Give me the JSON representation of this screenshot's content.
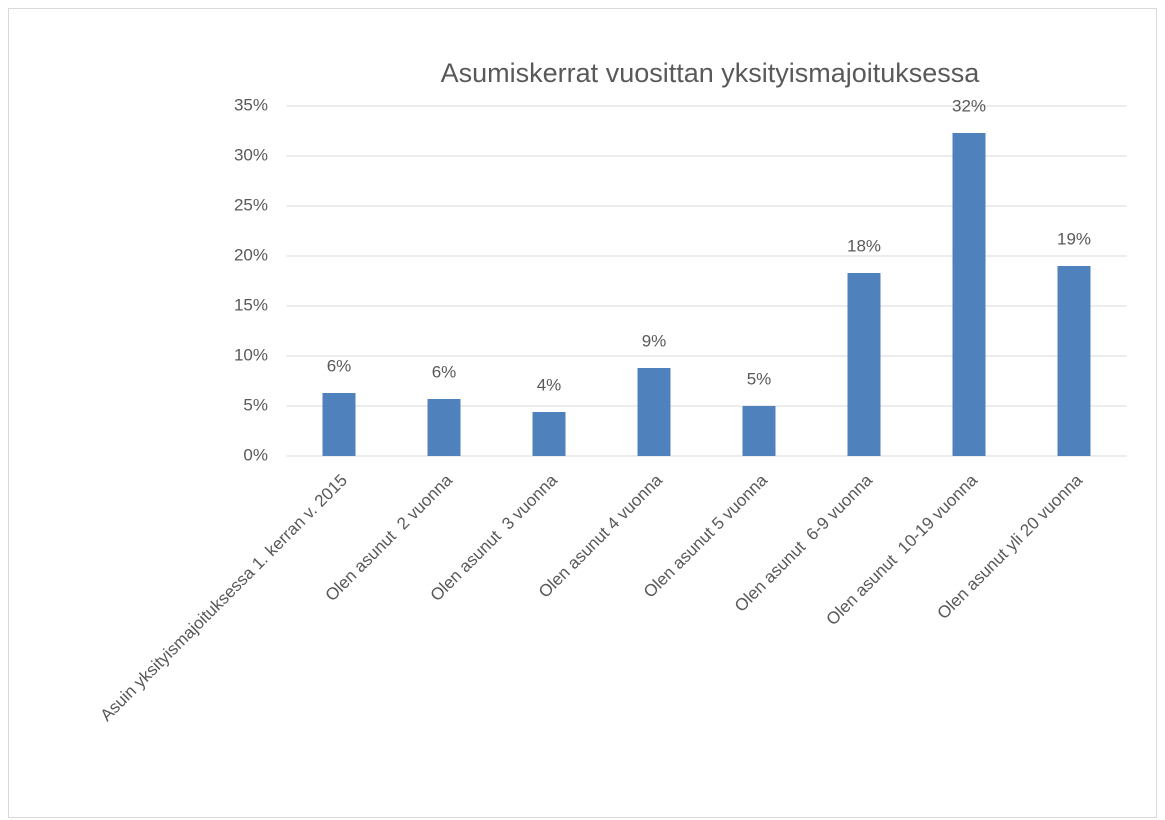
{
  "chart_data": {
    "type": "bar",
    "title": "Asumiskerrat vuosittan yksityismajoituksessa",
    "categories": [
      "Asuin yksityismajoituksessa 1. kerran v. 2015",
      "Olen asunut  2 vuonna",
      "Olen asunut  3 vuonna",
      "Olen asunut 4 vuonna",
      "Olen asunut 5 vuonna",
      "Olen asunut  6-9 vuonna",
      "Olen asunut  10-19 vuonna",
      "Olen asunut yli 20 vuonna"
    ],
    "values": [
      6.3,
      5.7,
      4.4,
      8.8,
      5.0,
      18.3,
      32.3,
      19.0
    ],
    "value_labels": [
      "6%",
      "6%",
      "4%",
      "9%",
      "5%",
      "18%",
      "32%",
      "19%"
    ],
    "color": "#4f81bd",
    "ylim": [
      0,
      35
    ],
    "yticks": [
      {
        "value": 0,
        "label": "0%"
      },
      {
        "value": 5,
        "label": "5%"
      },
      {
        "value": 10,
        "label": "10%"
      },
      {
        "value": 15,
        "label": "15%"
      },
      {
        "value": 20,
        "label": "20%"
      },
      {
        "value": 25,
        "label": "25%"
      },
      {
        "value": 30,
        "label": "30%"
      },
      {
        "value": 35,
        "label": "35%"
      }
    ],
    "grid": true
  }
}
